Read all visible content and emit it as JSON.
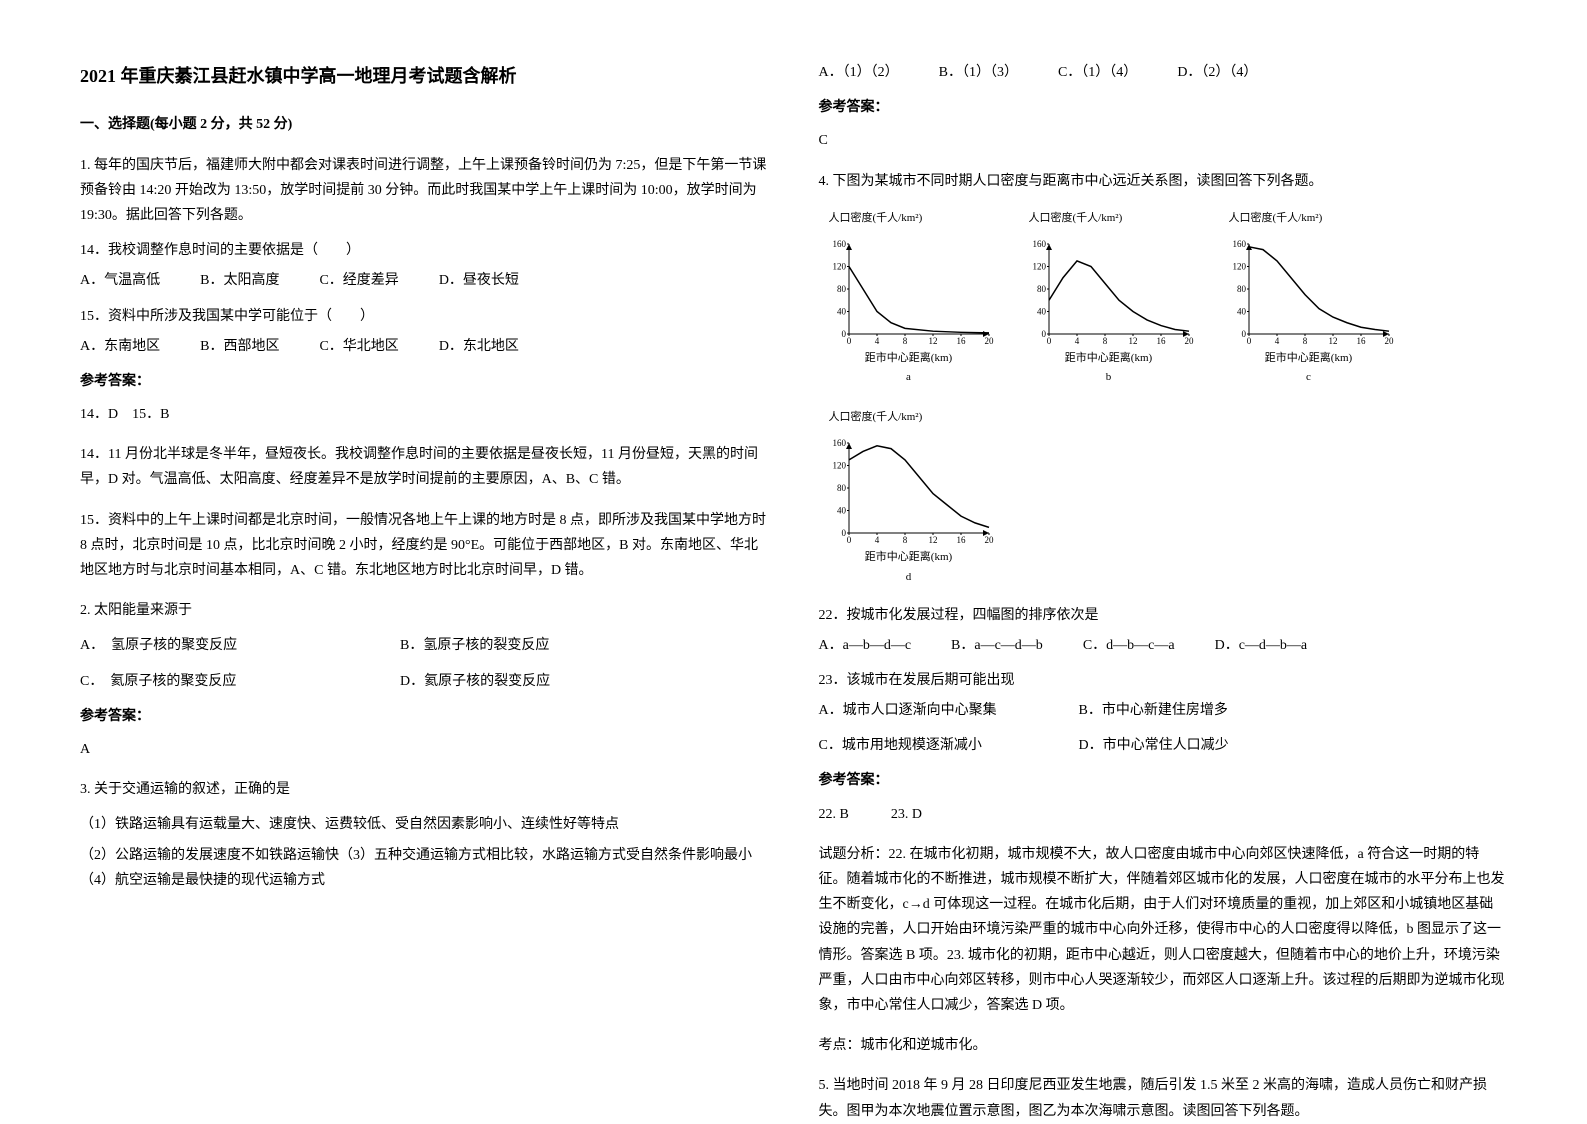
{
  "title": "2021 年重庆綦江县赶水镇中学高一地理月考试题含解析",
  "section1": {
    "header": "一、选择题(每小题 2 分，共 52 分)"
  },
  "q1": {
    "intro": "1. 每年的国庆节后，福建师大附中都会对课表时间进行调整，上午上课预备铃时间仍为 7:25，但是下午第一节课预备铃由 14:20 开始改为 13:50，放学时间提前 30 分钟。而此时我国某中学上午上课时间为 10:00，放学时间为 19:30。据此回答下列各题。",
    "sub14": "14．我校调整作息时间的主要依据是（　　）",
    "opt14_a": "A．气温高低",
    "opt14_b": "B．太阳高度",
    "opt14_c": "C．经度差异",
    "opt14_d": "D．昼夜长短",
    "sub15": "15．资料中所涉及我国某中学可能位于（　　）",
    "opt15_a": "A．东南地区",
    "opt15_b": "B．西部地区",
    "opt15_c": "C．华北地区",
    "opt15_d": "D．东北地区",
    "answer_label": "参考答案：",
    "answer": "14．D　15．B",
    "exp14": "14．11 月份北半球是冬半年，昼短夜长。我校调整作息时间的主要依据是昼夜长短，11 月份昼短，天黑的时间早，D 对。气温高低、太阳高度、经度差异不是放学时间提前的主要原因，A、B、C 错。",
    "exp15": "15．资料中的上午上课时间都是北京时间，一般情况各地上午上课的地方时是 8 点，即所涉及我国某中学地方时 8 点时，北京时间是 10 点，比北京时间晚 2 小时，经度约是 90°E。可能位于西部地区，B 对。东南地区、华北地区地方时与北京时间基本相同，A、C 错。东北地区地方时比北京时间早，D 错。"
  },
  "q2": {
    "text": "2. 太阳能量来源于",
    "opt_a": "A．　氢原子核的聚变反应",
    "opt_b": "B．氢原子核的裂变反应",
    "opt_c": "C．　氦原子核的聚变反应",
    "opt_d": "D．氦原子核的裂变反应",
    "answer_label": "参考答案：",
    "answer": "A"
  },
  "q3": {
    "text": "3. 关于交通运输的叙述，正确的是",
    "line1": "（1）铁路运输具有运载量大、速度快、运费较低、受自然因素影响小、连续性好等特点",
    "line2": "（2）公路运输的发展速度不如铁路运输快（3）五种交通运输方式相比较，水路运输方式受自然条件影响最小（4）航空运输是最快捷的现代运输方式",
    "opt_a": "A．（1）（2）",
    "opt_b": "B．（1）（3）",
    "opt_c": "C．（1）（4）",
    "opt_d": "D．（2）（4）",
    "answer_label": "参考答案：",
    "answer": "C"
  },
  "q4": {
    "text": "4. 下图为某城市不同时期人口密度与距离市中心远近关系图，读图回答下列各题。",
    "charts": {
      "ylabel": "人口密度(千人/km²)",
      "xlabel": "距市中心距离(km)",
      "ymax": 160,
      "yticks": [
        0,
        40,
        80,
        120,
        160
      ],
      "xticks": [
        0,
        4,
        8,
        12,
        16,
        20
      ],
      "width": 180,
      "height": 120,
      "axis_color": "#000000",
      "line_color": "#000000",
      "background": "#ffffff",
      "label_fontsize": 11,
      "series": {
        "a": {
          "label": "a",
          "points": [
            [
              0,
              120
            ],
            [
              2,
              80
            ],
            [
              4,
              40
            ],
            [
              6,
              20
            ],
            [
              8,
              10
            ],
            [
              12,
              5
            ],
            [
              16,
              3
            ],
            [
              20,
              2
            ]
          ]
        },
        "b": {
          "label": "b",
          "points": [
            [
              0,
              60
            ],
            [
              2,
              100
            ],
            [
              4,
              130
            ],
            [
              6,
              120
            ],
            [
              8,
              90
            ],
            [
              10,
              60
            ],
            [
              12,
              40
            ],
            [
              14,
              25
            ],
            [
              16,
              15
            ],
            [
              18,
              8
            ],
            [
              20,
              5
            ]
          ]
        },
        "c": {
          "label": "c",
          "points": [
            [
              0,
              155
            ],
            [
              2,
              150
            ],
            [
              4,
              130
            ],
            [
              6,
              100
            ],
            [
              8,
              70
            ],
            [
              10,
              45
            ],
            [
              12,
              30
            ],
            [
              14,
              20
            ],
            [
              16,
              12
            ],
            [
              18,
              8
            ],
            [
              20,
              5
            ]
          ]
        },
        "d": {
          "label": "d",
          "points": [
            [
              0,
              130
            ],
            [
              2,
              145
            ],
            [
              4,
              155
            ],
            [
              6,
              150
            ],
            [
              8,
              130
            ],
            [
              10,
              100
            ],
            [
              12,
              70
            ],
            [
              14,
              50
            ],
            [
              16,
              30
            ],
            [
              18,
              18
            ],
            [
              20,
              10
            ]
          ]
        }
      }
    },
    "sub22": "22．按城市化发展过程，四幅图的排序依次是",
    "opt22_a": "A．a—b—d—c",
    "opt22_b": "B．a—c—d—b",
    "opt22_c": "C．d—b—c—a",
    "opt22_d": "D．c—d—b—a",
    "sub23": "23．该城市在发展后期可能出现",
    "opt23_a": "A．城市人口逐渐向中心聚集",
    "opt23_b": "B．市中心新建住房增多",
    "opt23_c": "C．城市用地规模逐渐减小",
    "opt23_d": "D．市中心常住人口减少",
    "answer_label": "参考答案：",
    "answer": "22. B　　　23. D",
    "explanation": "试题分析：22. 在城市化初期，城市规模不大，故人口密度由城市中心向郊区快速降低，a 符合这一时期的特征。随着城市化的不断推进，城市规模不断扩大，伴随着郊区城市化的发展，人口密度在城市的水平分布上也发生不断变化，c→d 可体现这一过程。在城市化后期，由于人们对环境质量的重视，加上郊区和小城镇地区基础设施的完善，人口开始由环境污染严重的城市中心向外迁移，使得市中心的人口密度得以降低，b 图显示了这一情形。答案选 B 项。23. 城市化的初期，距市中心越近，则人口密度越大，但随着市中心的地价上升，环境污染严重，人口由市中心向郊区转移，则市中心人哭逐渐较少，而郊区人口逐渐上升。该过程的后期即为逆城市化现象，市中心常住人口减少，答案选 D 项。",
    "keypoint": "考点：城市化和逆城市化。"
  },
  "q5": {
    "text": "5. 当地时间 2018 年 9 月 28 日印度尼西亚发生地震，随后引发 1.5 米至 2 米高的海啸，造成人员伤亡和财产损失。图甲为本次地震位置示意图，图乙为本次海啸示意图。读图回答下列各题。"
  }
}
